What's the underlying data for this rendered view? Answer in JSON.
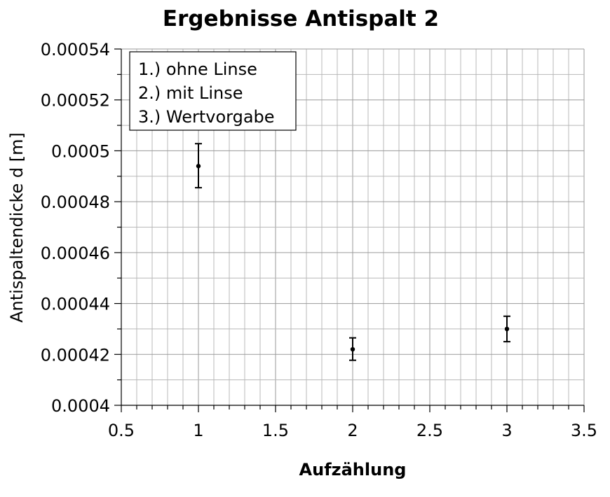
{
  "chart_data": {
    "type": "scatter",
    "title": "Ergebnisse Antispalt 2",
    "xlabel": "Aufzählung",
    "ylabel": "Antispaltendicke d [m]",
    "xlim": [
      0.5,
      3.5
    ],
    "ylim": [
      0.0004,
      0.00054
    ],
    "xticks": [
      0.5,
      1,
      1.5,
      2,
      2.5,
      3,
      3.5
    ],
    "xtick_labels": [
      "0.5",
      "1",
      "1.5",
      "2",
      "2.5",
      "3",
      "3.5"
    ],
    "yticks": [
      0.0004,
      0.00042,
      0.00044,
      0.00046,
      0.00048,
      0.0005,
      0.00052,
      0.00054
    ],
    "ytick_labels": [
      "0.0004",
      "0.00042",
      "0.00044",
      "0.00046",
      "0.00048",
      "0.0005",
      "0.00052",
      "0.00054"
    ],
    "grid": true,
    "legend_position": "top-left",
    "legend": [
      "1.) ohne Linse",
      "2.) mit Linse",
      "3.) Wertvorgabe"
    ],
    "points": [
      {
        "x": 1,
        "y": 0.000494,
        "yerr_low": 0.0004855,
        "yerr_high": 0.0005028
      },
      {
        "x": 2,
        "y": 0.000422,
        "yerr_low": 0.0004177,
        "yerr_high": 0.0004265
      },
      {
        "x": 3,
        "y": 0.00043,
        "yerr_low": 0.000425,
        "yerr_high": 0.000435
      }
    ],
    "marker_color": "#000000"
  }
}
